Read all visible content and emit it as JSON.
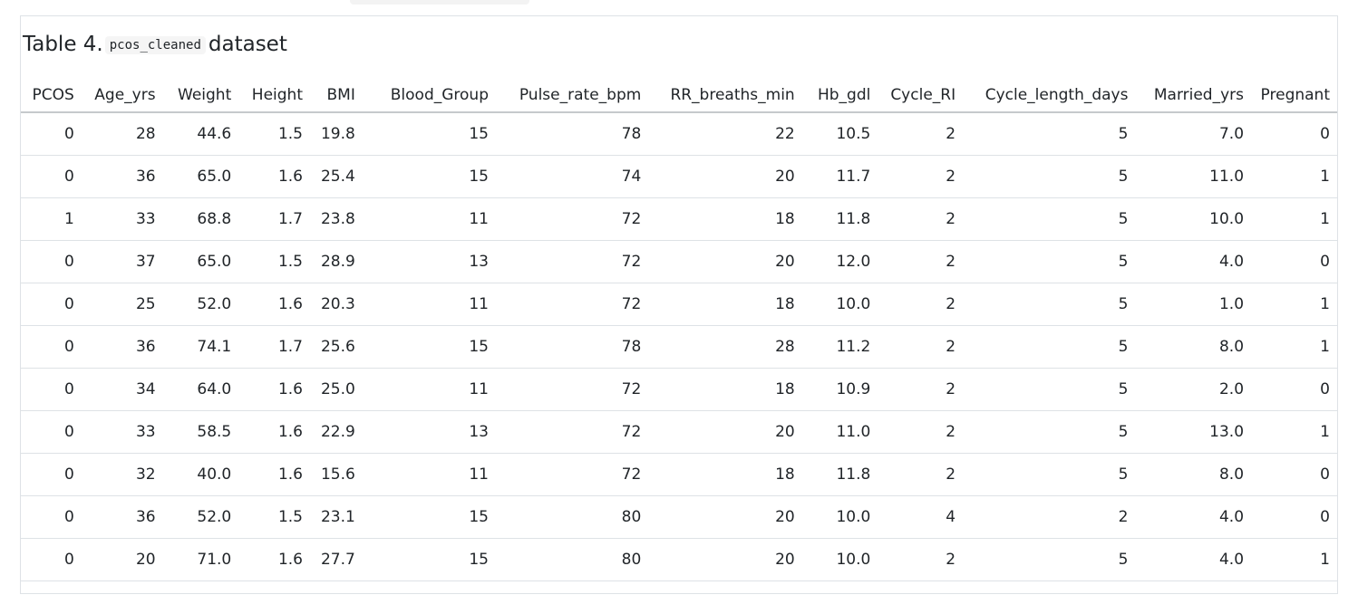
{
  "caption": {
    "prefix": "Table 4.",
    "code": "pcos_cleaned",
    "suffix": "dataset"
  },
  "table": {
    "columns": [
      "PCOS",
      "Age_yrs",
      "Weight",
      "Height",
      "BMI",
      "Blood_Group",
      "Pulse_rate_bpm",
      "RR_breaths_min",
      "Hb_gdl",
      "Cycle_RI",
      "Cycle_length_days",
      "Married_yrs",
      "Pregnant"
    ],
    "rows": [
      [
        "0",
        "28",
        "44.6",
        "1.5",
        "19.8",
        "15",
        "78",
        "22",
        "10.5",
        "2",
        "5",
        "7.0",
        "0"
      ],
      [
        "0",
        "36",
        "65.0",
        "1.6",
        "25.4",
        "15",
        "74",
        "20",
        "11.7",
        "2",
        "5",
        "11.0",
        "1"
      ],
      [
        "1",
        "33",
        "68.8",
        "1.7",
        "23.8",
        "11",
        "72",
        "18",
        "11.8",
        "2",
        "5",
        "10.0",
        "1"
      ],
      [
        "0",
        "37",
        "65.0",
        "1.5",
        "28.9",
        "13",
        "72",
        "20",
        "12.0",
        "2",
        "5",
        "4.0",
        "0"
      ],
      [
        "0",
        "25",
        "52.0",
        "1.6",
        "20.3",
        "11",
        "72",
        "18",
        "10.0",
        "2",
        "5",
        "1.0",
        "1"
      ],
      [
        "0",
        "36",
        "74.1",
        "1.7",
        "25.6",
        "15",
        "78",
        "28",
        "11.2",
        "2",
        "5",
        "8.0",
        "1"
      ],
      [
        "0",
        "34",
        "64.0",
        "1.6",
        "25.0",
        "11",
        "72",
        "18",
        "10.9",
        "2",
        "5",
        "2.0",
        "0"
      ],
      [
        "0",
        "33",
        "58.5",
        "1.6",
        "22.9",
        "13",
        "72",
        "20",
        "11.0",
        "2",
        "5",
        "13.0",
        "1"
      ],
      [
        "0",
        "32",
        "40.0",
        "1.6",
        "15.6",
        "11",
        "72",
        "18",
        "11.8",
        "2",
        "5",
        "8.0",
        "0"
      ],
      [
        "0",
        "36",
        "52.0",
        "1.5",
        "23.1",
        "15",
        "80",
        "20",
        "10.0",
        "4",
        "2",
        "4.0",
        "0"
      ],
      [
        "0",
        "20",
        "71.0",
        "1.6",
        "27.7",
        "15",
        "80",
        "20",
        "10.0",
        "2",
        "5",
        "4.0",
        "1"
      ]
    ]
  }
}
